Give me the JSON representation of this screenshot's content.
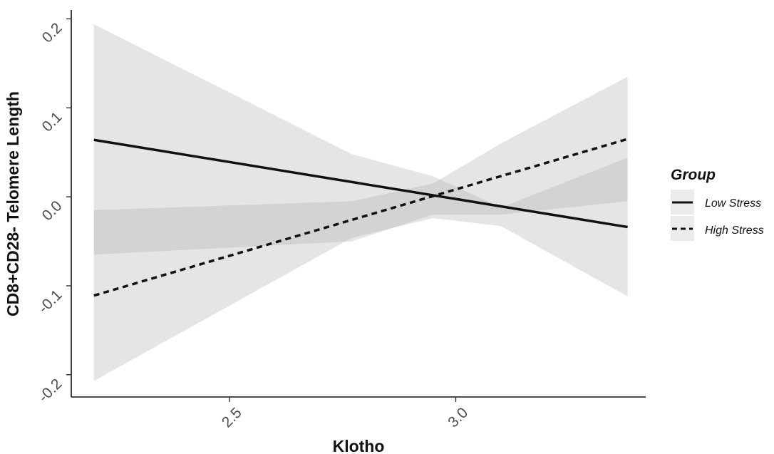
{
  "chart_data": {
    "type": "line",
    "xlabel": "Klotho",
    "ylabel": "CD8+CD28- Telomere Length",
    "xlim": [
      2.15,
      3.42
    ],
    "ylim": [
      -0.225,
      0.21
    ],
    "x_ticks": [
      {
        "value": 2.5,
        "label": "2.5"
      },
      {
        "value": 3.0,
        "label": "3.0"
      }
    ],
    "y_ticks": [
      {
        "value": -0.2,
        "label": "-0.2"
      },
      {
        "value": -0.1,
        "label": "-0.1"
      },
      {
        "value": 0.0,
        "label": "0.0"
      },
      {
        "value": 0.1,
        "label": "0.1"
      },
      {
        "value": 0.2,
        "label": "0.2"
      }
    ],
    "grid": false,
    "legend": {
      "title": "Group",
      "position": "right"
    },
    "series": [
      {
        "name": "Low Stress",
        "linestyle": "solid",
        "color": "#111111",
        "x": [
          2.2,
          3.38
        ],
        "y": [
          0.064,
          -0.034
        ],
        "ci_upper": [
          [
            2.2,
            0.194
          ],
          [
            2.77,
            0.048
          ],
          [
            2.95,
            0.023
          ],
          [
            3.1,
            -0.012
          ],
          [
            3.38,
            0.044
          ]
        ],
        "ci_lower": [
          [
            3.38,
            -0.112
          ],
          [
            3.1,
            -0.033
          ],
          [
            2.95,
            -0.024
          ],
          [
            2.77,
            -0.046
          ],
          [
            2.2,
            -0.207
          ]
        ]
      },
      {
        "name": "High Stress",
        "linestyle": "dashed",
        "color": "#111111",
        "x": [
          2.2,
          3.38
        ],
        "y": [
          -0.111,
          0.065
        ],
        "ci_upper": [
          [
            2.2,
            -0.015
          ],
          [
            2.77,
            -0.005
          ],
          [
            2.95,
            0.015
          ],
          [
            3.1,
            0.06
          ],
          [
            3.38,
            0.135
          ]
        ],
        "ci_lower": [
          [
            3.38,
            -0.005
          ],
          [
            3.1,
            -0.02
          ],
          [
            2.95,
            -0.02
          ],
          [
            2.77,
            -0.05
          ],
          [
            2.2,
            -0.065
          ]
        ]
      }
    ],
    "band_color": "#a8a8a8"
  }
}
